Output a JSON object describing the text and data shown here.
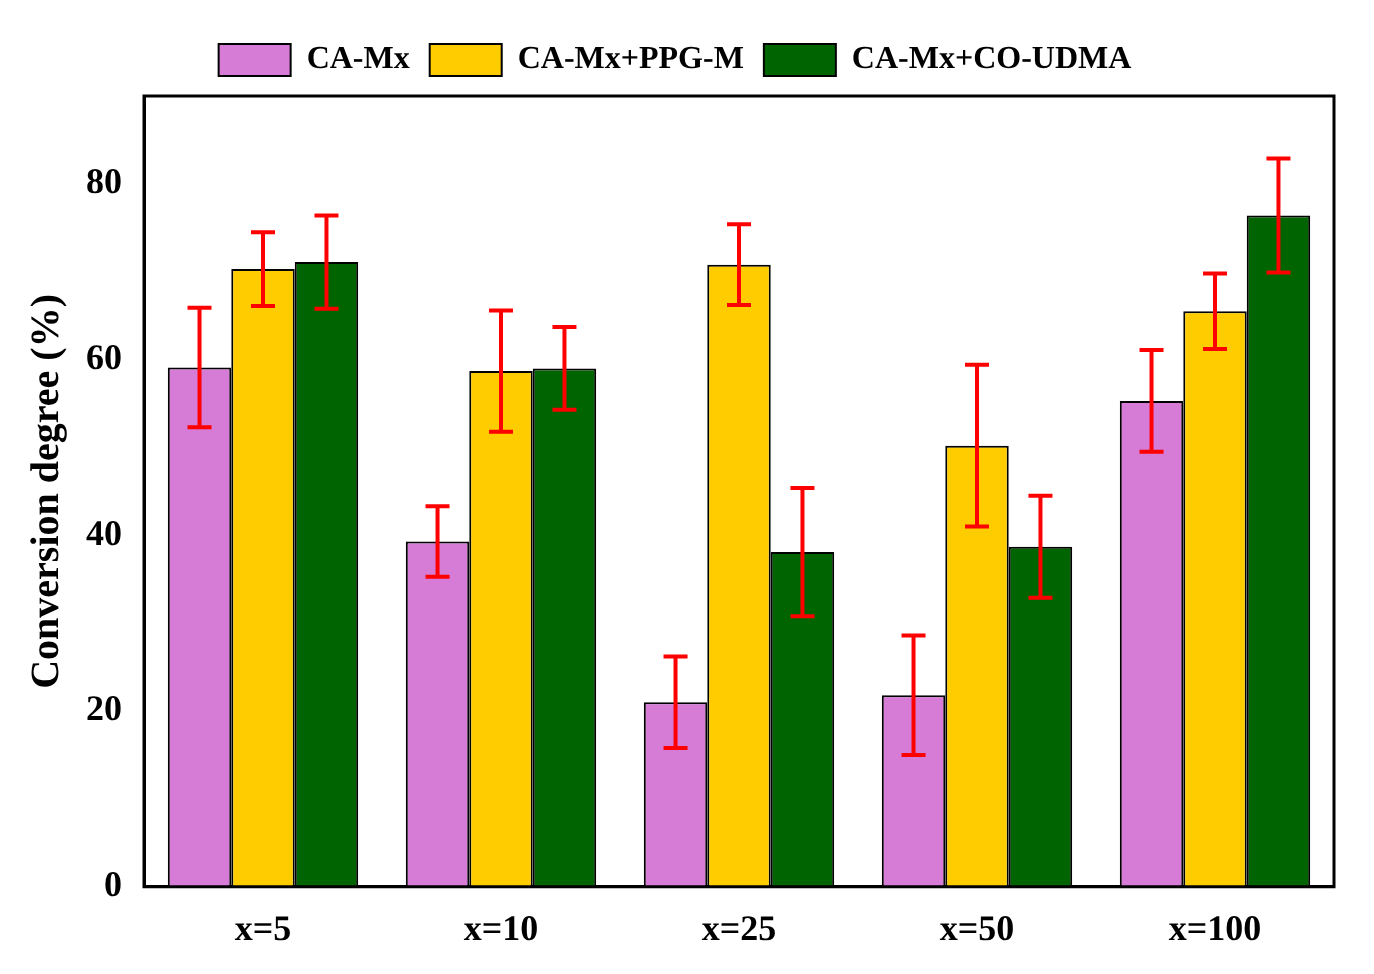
{
  "chart_data": {
    "type": "bar",
    "ylabel": "Conversion degree (%)",
    "categories": [
      "x=5",
      "x=10",
      "x=25",
      "x=50",
      "x=100"
    ],
    "series": [
      {
        "name": "CA-Mx",
        "color": "#d67bd6",
        "values": [
          59.1,
          39.3,
          21.0,
          21.8,
          55.3
        ],
        "errors": [
          6.8,
          4.0,
          5.2,
          6.8,
          5.8
        ]
      },
      {
        "name": "CA-Mx+PPG-M",
        "color": "#ffcc00",
        "values": [
          70.3,
          58.7,
          70.8,
          50.2,
          65.5
        ],
        "errors": [
          4.2,
          6.9,
          4.6,
          9.2,
          4.3
        ]
      },
      {
        "name": "CA-Mx+CO-UDMA",
        "color": "#006400",
        "values": [
          71.1,
          59.0,
          38.1,
          38.7,
          76.4
        ],
        "errors": [
          5.3,
          4.7,
          7.3,
          5.8,
          6.5
        ]
      }
    ],
    "ylim": [
      0,
      90
    ],
    "yticks": [
      0,
      20,
      40,
      60,
      80
    ],
    "grid": false,
    "legend": "top"
  }
}
